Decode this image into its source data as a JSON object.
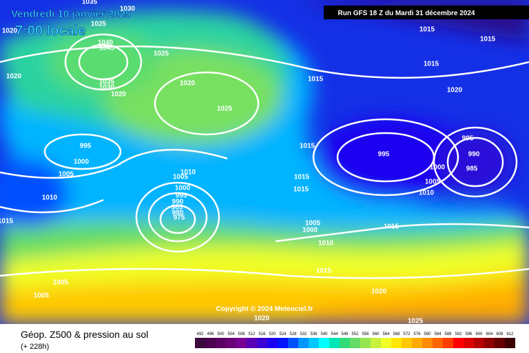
{
  "header": {
    "date": "Vendredi 10 janvier 2025",
    "time": "7:00 locale",
    "run": "Run GFS 18 Z du Mardi 31 décembre 2024"
  },
  "map": {
    "isobar_labels": [
      "1035",
      "1030",
      "1025",
      "1020",
      "1040",
      "1045",
      "1025",
      "1020",
      "1035",
      "1030",
      "1020",
      "1020",
      "1025",
      "1015",
      "1015",
      "1015",
      "1015",
      "1020",
      "995",
      "1000",
      "1005",
      "1010",
      "1015",
      "1010",
      "1005",
      "1000",
      "995",
      "990",
      "985",
      "980",
      "975",
      "1015",
      "1015",
      "1015",
      "995",
      "995",
      "990",
      "985",
      "1000",
      "1005",
      "1010",
      "1005",
      "1000",
      "1010",
      "1015",
      "1015",
      "1005",
      "1005",
      "1020",
      "1020",
      "1025"
    ],
    "copyright": "Copyright © 2024 Meteociel.fr"
  },
  "footer": {
    "title": "Géop. Z500 & pression au sol",
    "lead": "(+ 228h)"
  },
  "colorbar": {
    "values": [
      492,
      496,
      500,
      504,
      508,
      512,
      516,
      520,
      524,
      528,
      532,
      536,
      540,
      544,
      548,
      552,
      556,
      560,
      564,
      568,
      572,
      576,
      580,
      584,
      588,
      592,
      596,
      600,
      604,
      608,
      612
    ],
    "colors": [
      "#3c0a3c",
      "#4b0050",
      "#5a0064",
      "#690078",
      "#780096",
      "#5a00b4",
      "#3c00d2",
      "#1e00f0",
      "#0014ff",
      "#0050ff",
      "#0096ff",
      "#00c8ff",
      "#00ffff",
      "#00e6b4",
      "#32dc78",
      "#64dc64",
      "#96e650",
      "#c8f03c",
      "#f0ff28",
      "#ffe600",
      "#ffc800",
      "#ffaa00",
      "#ff8c00",
      "#ff6400",
      "#ff3c00",
      "#ff0000",
      "#dc0000",
      "#b40000",
      "#8c0000",
      "#640000",
      "#3c0000"
    ]
  }
}
